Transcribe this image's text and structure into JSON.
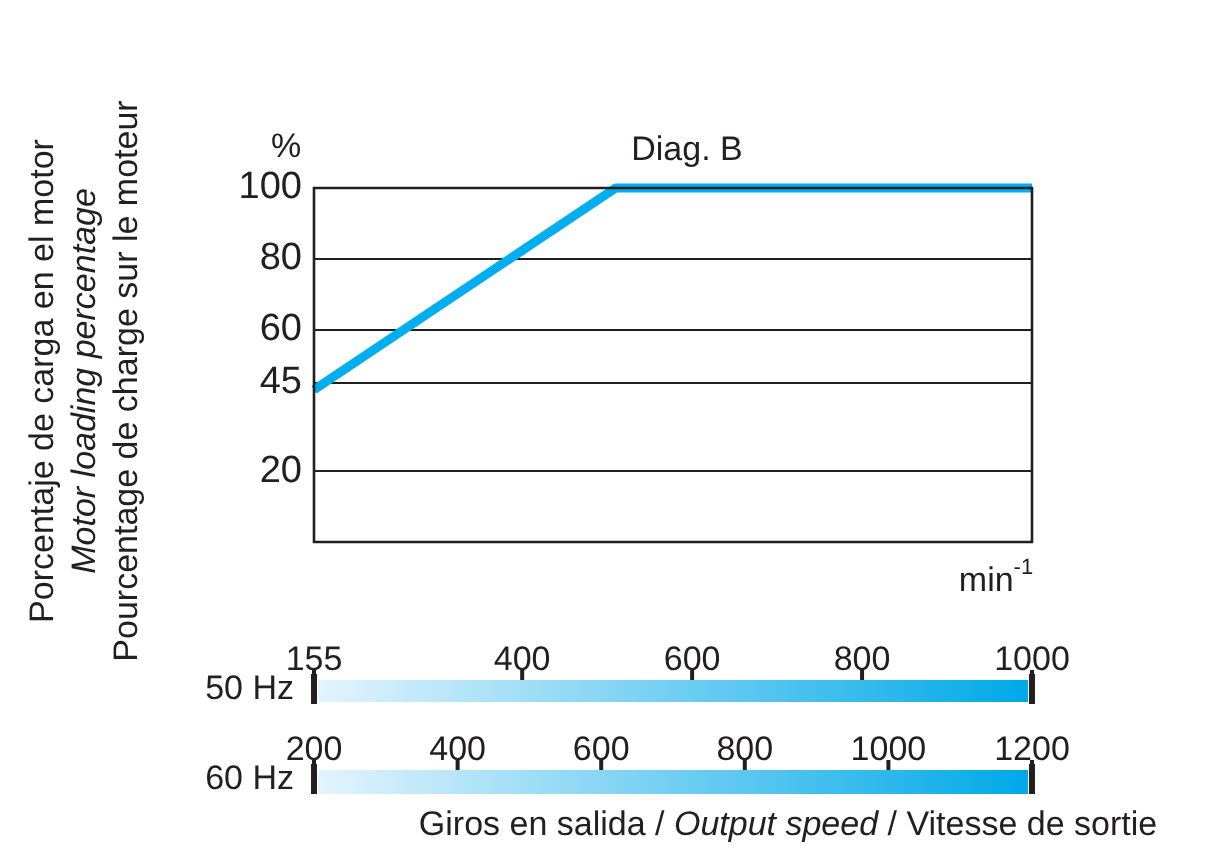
{
  "chart_data": {
    "type": "line",
    "title": "Diag. B",
    "ylabel": "Porcentaje de carga en el motor\nMotor loading percentage\nPourcentage de charge sur le moteur",
    "xlabel": "50 Hz",
    "x2label": "60 Hz",
    "annotations": [
      "%",
      "min$^{-1}$",
      "Giros en salida / Output speed / Vitesse de sortie"
    ],
    "x": [
      155,
      510,
      1000
    ],
    "series": [
      {
        "color": "#00aeef",
        "values": [
          43,
          100,
          100
        ]
      }
    ],
    "xlim": [
      155,
      1000
    ],
    "xticks": [
      155,
      400,
      600,
      800,
      1000
    ],
    "x2lim": [
      200,
      1200
    ],
    "x2ticks": [
      200,
      400,
      600,
      800,
      1000,
      1200
    ],
    "ylim": [
      0,
      100
    ],
    "yticks": [
      20,
      45,
      60,
      80,
      100
    ],
    "grid": "y",
    "legend": false,
    "marker": "none",
    "line_style": "solid"
  }
}
